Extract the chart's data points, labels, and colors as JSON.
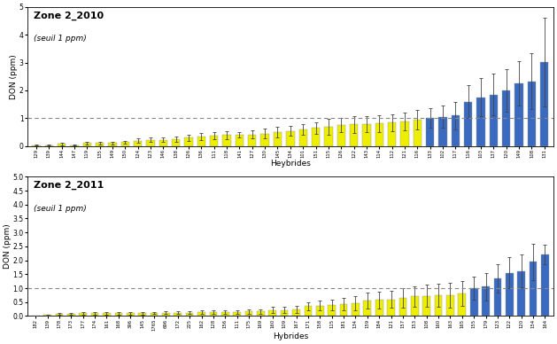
{
  "plot1": {
    "title": "Zone 2_2010",
    "subtitle": "(seuil 1 ppm)",
    "xlabel": "Heybrides",
    "ylabel": "DON (ppm)",
    "ylim": [
      0,
      5
    ],
    "yticks": [
      0,
      1,
      2,
      3,
      4,
      5
    ],
    "threshold": 1.0,
    "categories": [
      "129",
      "139",
      "144",
      "147",
      "119",
      "135",
      "149",
      "150",
      "124",
      "123",
      "146",
      "138",
      "126",
      "136",
      "111",
      "118",
      "141",
      "127",
      "130",
      "145",
      "134",
      "101",
      "151",
      "115",
      "126",
      "122",
      "143",
      "114",
      "112",
      "121",
      "116",
      "133",
      "102",
      "117",
      "116",
      "103",
      "137",
      "120",
      "149",
      "108",
      "131"
    ],
    "bar_values": [
      0.04,
      0.04,
      0.08,
      0.04,
      0.12,
      0.12,
      0.12,
      0.15,
      0.2,
      0.22,
      0.22,
      0.25,
      0.3,
      0.35,
      0.38,
      0.4,
      0.4,
      0.42,
      0.45,
      0.5,
      0.55,
      0.6,
      0.65,
      0.7,
      0.75,
      0.78,
      0.8,
      0.82,
      0.85,
      0.9,
      0.95,
      1.0,
      1.05,
      1.1,
      1.6,
      1.75,
      1.85,
      2.0,
      2.25,
      2.32,
      3.02
    ],
    "bar_errors": [
      0.02,
      0.02,
      0.04,
      0.02,
      0.05,
      0.05,
      0.05,
      0.05,
      0.08,
      0.08,
      0.08,
      0.1,
      0.1,
      0.12,
      0.12,
      0.15,
      0.1,
      0.15,
      0.18,
      0.2,
      0.18,
      0.2,
      0.22,
      0.28,
      0.25,
      0.3,
      0.28,
      0.3,
      0.3,
      0.32,
      0.35,
      0.35,
      0.4,
      0.5,
      0.6,
      0.68,
      0.75,
      0.75,
      0.8,
      1.0,
      1.6
    ],
    "bar_color_below": "#eeee00",
    "bar_color_above": "#3a6abf",
    "threshold_color": "#888888"
  },
  "plot2": {
    "title": "Zone 2_2011",
    "subtitle": "(seuil 1 ppm)",
    "xlabel": "Hybrides",
    "ylabel": "DON (ppm)",
    "ylim": [
      0,
      5
    ],
    "yticks": [
      0,
      0.5,
      1.0,
      1.5,
      2.0,
      2.5,
      3.0,
      3.5,
      4.0,
      4.5,
      5.0
    ],
    "threshold": 1.0,
    "categories": [
      "182",
      "139",
      "178",
      "173",
      "177",
      "174",
      "161",
      "168",
      "396",
      "145",
      "1765",
      "696",
      "172",
      "225",
      "162",
      "128",
      "156",
      "111",
      "175",
      "169",
      "160",
      "109",
      "167",
      "171",
      "158",
      "115",
      "181",
      "134",
      "159",
      "184",
      "121",
      "157",
      "153",
      "108",
      "160",
      "163",
      "165",
      "155",
      "179",
      "123",
      "122",
      "120",
      "154",
      "164"
    ],
    "bar_values": [
      0.02,
      0.04,
      0.08,
      0.09,
      0.1,
      0.1,
      0.1,
      0.1,
      0.1,
      0.1,
      0.11,
      0.12,
      0.12,
      0.12,
      0.13,
      0.14,
      0.15,
      0.15,
      0.16,
      0.16,
      0.22,
      0.22,
      0.23,
      0.35,
      0.38,
      0.4,
      0.42,
      0.45,
      0.55,
      0.58,
      0.6,
      0.65,
      0.7,
      0.72,
      0.75,
      0.75,
      0.8,
      1.0,
      1.05,
      1.35,
      1.55,
      1.62,
      1.95,
      2.2
    ],
    "bar_errors": [
      0.01,
      0.02,
      0.03,
      0.03,
      0.04,
      0.04,
      0.04,
      0.04,
      0.04,
      0.04,
      0.04,
      0.05,
      0.05,
      0.05,
      0.06,
      0.06,
      0.07,
      0.07,
      0.07,
      0.08,
      0.1,
      0.1,
      0.12,
      0.15,
      0.18,
      0.2,
      0.22,
      0.25,
      0.28,
      0.3,
      0.3,
      0.35,
      0.38,
      0.4,
      0.42,
      0.45,
      0.45,
      0.42,
      0.5,
      0.5,
      0.55,
      0.6,
      0.65,
      0.35
    ],
    "bar_color_below": "#eeee00",
    "bar_color_above": "#3a6abf",
    "threshold_color": "#888888"
  },
  "background_color": "#ffffff",
  "fig_width": 6.29,
  "fig_height": 3.88,
  "dpi": 100
}
